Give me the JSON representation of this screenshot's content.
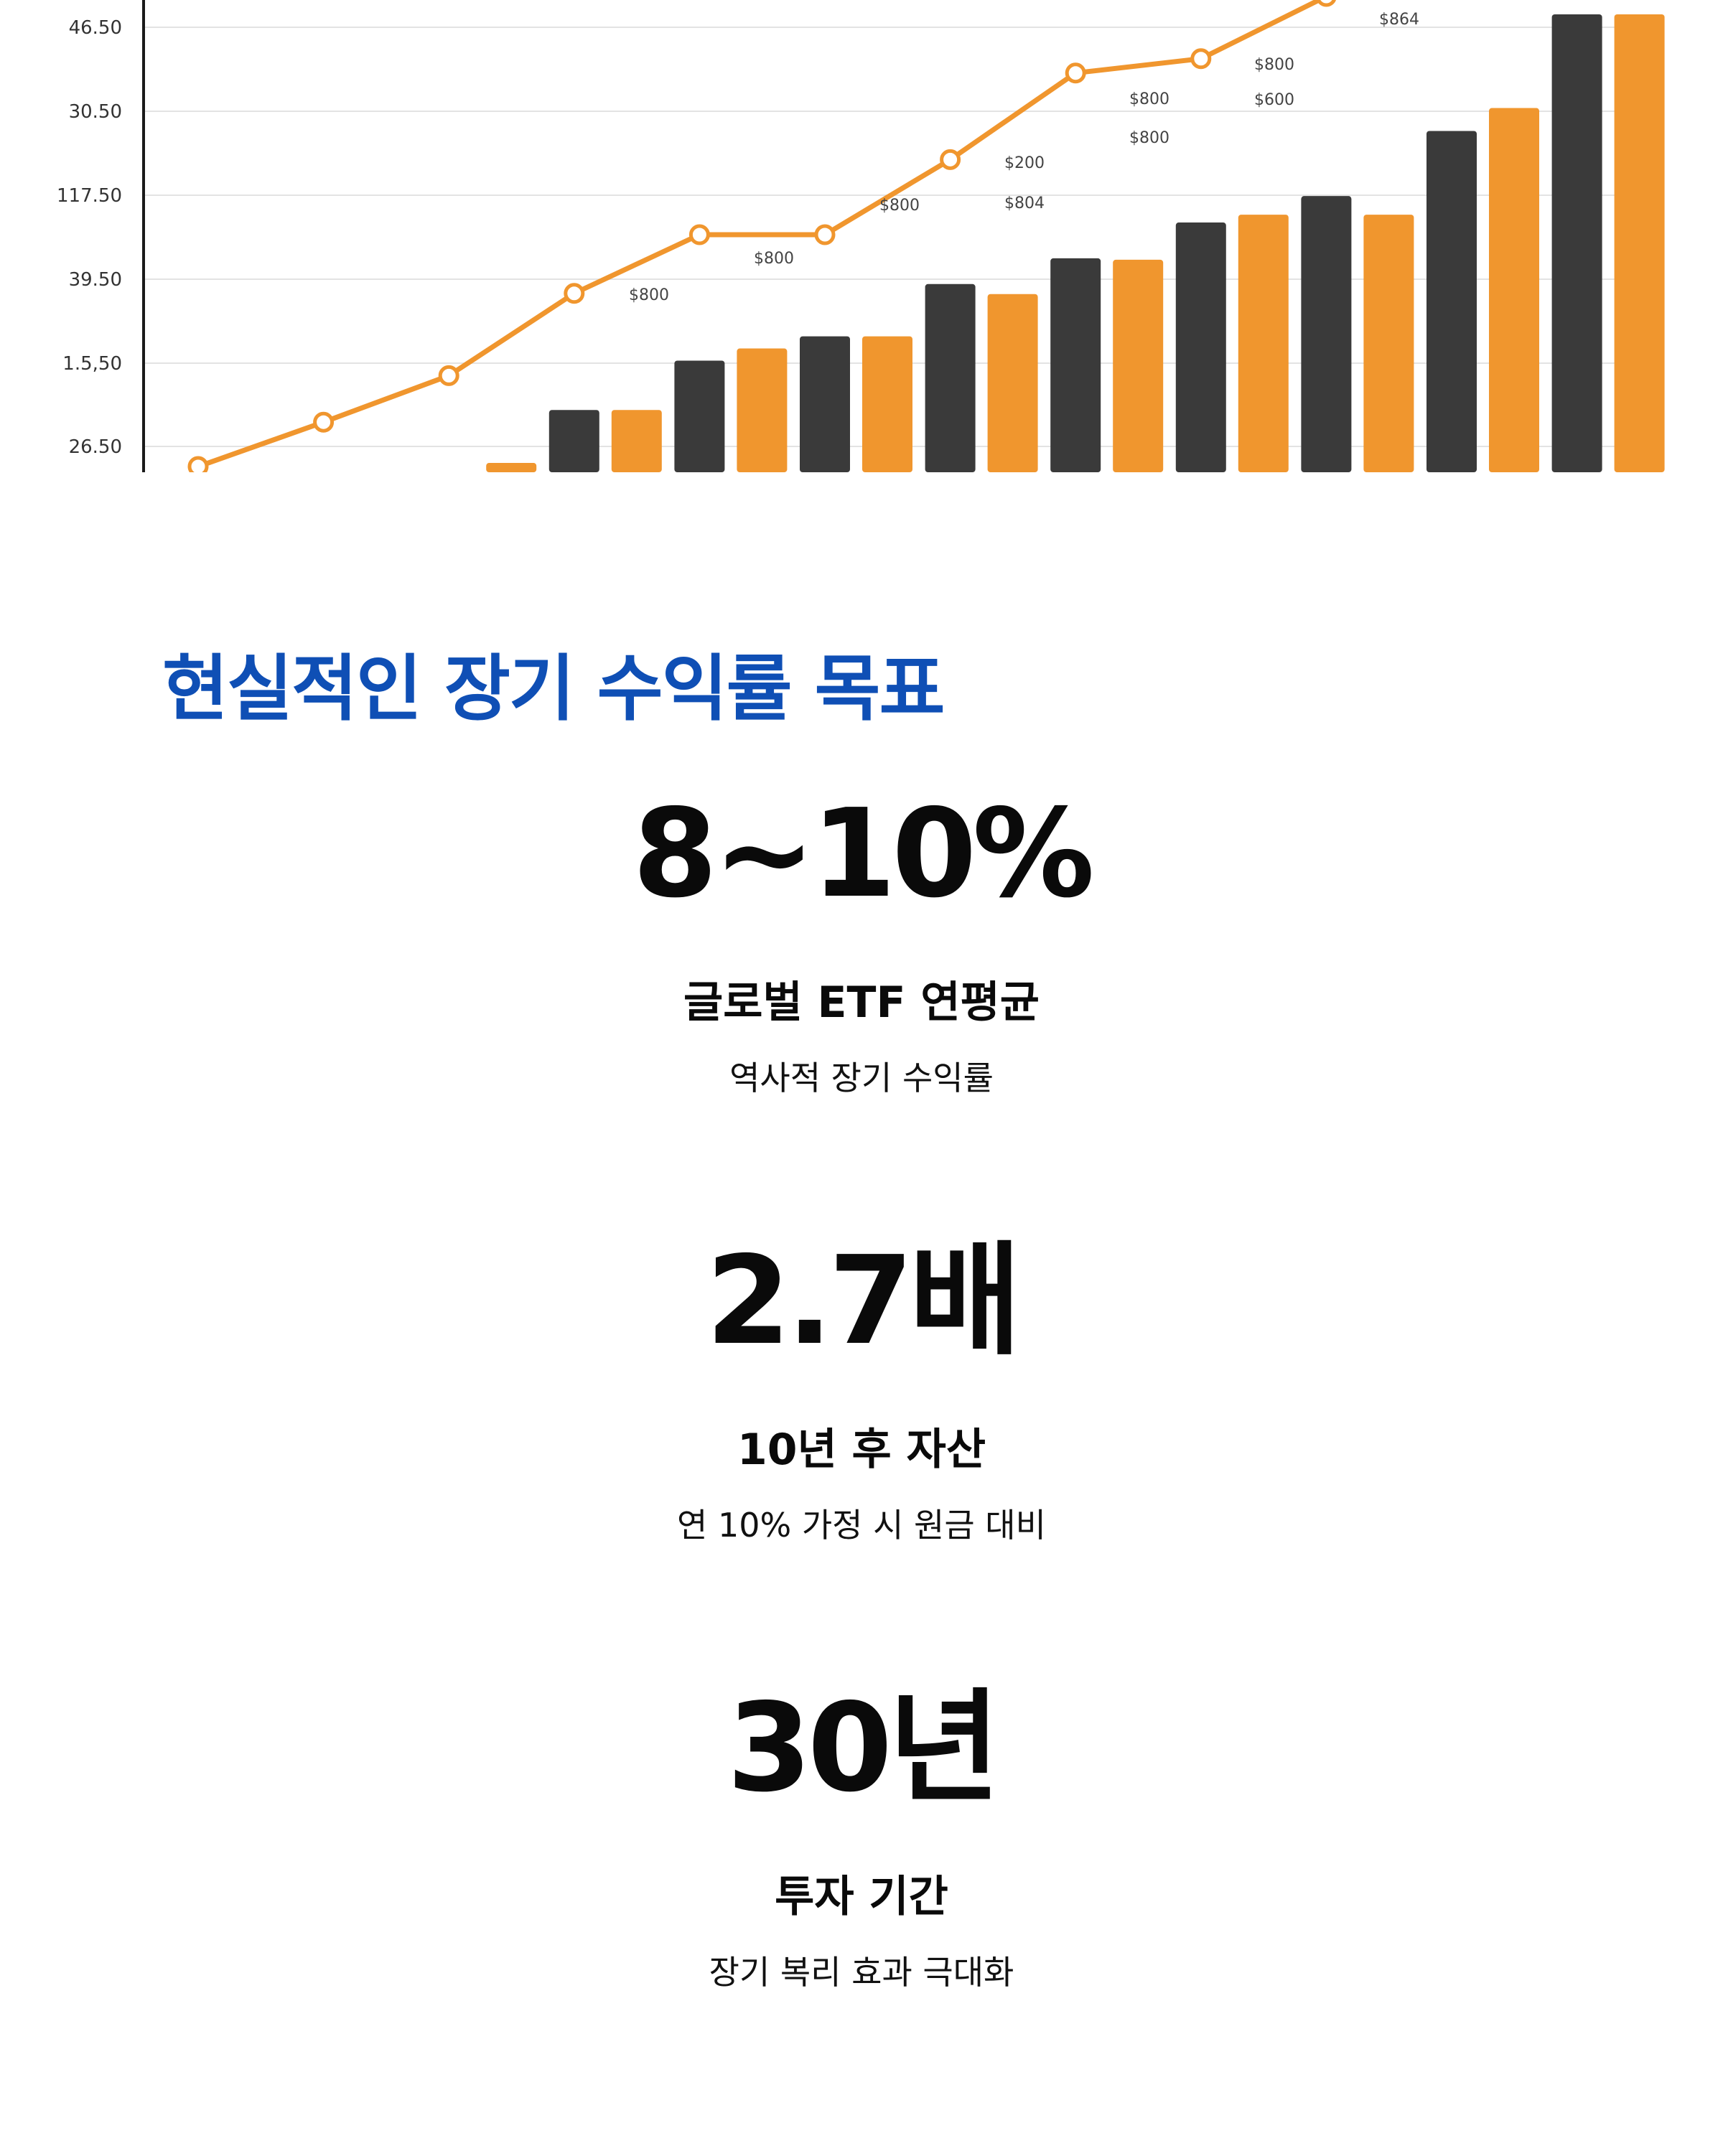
{
  "chart_data": {
    "type": "bar",
    "ytick_labels": [
      "46.50",
      "30.50",
      "117.50",
      "39.50",
      "1.5,50",
      "26.50"
    ],
    "series": [
      {
        "color": "#3a3a3a",
        "values": [
          null,
          null,
          null,
          87,
          156,
          190,
          263,
          299,
          349,
          386,
          477,
          640
        ]
      },
      {
        "color": "#f0962e",
        "values": [
          null,
          null,
          13,
          87,
          173,
          190,
          249,
          297,
          360,
          360,
          509,
          640
        ]
      }
    ],
    "line": {
      "color": "#f0962e",
      "values": [
        8,
        70,
        135,
        250,
        332,
        332,
        437,
        558,
        578,
        665
      ]
    },
    "bar_labels": [
      "$800",
      "$800",
      "$800",
      "$200",
      "$804",
      "$800",
      "$800",
      "$800",
      "$600",
      "$864"
    ]
  },
  "title": "현실적인 장기 수익률 목표",
  "stats": [
    {
      "value": "8~10%",
      "label": "글로벌 ETF 연평균",
      "desc": "역사적 장기 수익률"
    },
    {
      "value": "2.7배",
      "label": "10년 후 자산",
      "desc": "연 10% 가정 시 원금 대비"
    },
    {
      "value": "30년",
      "label": "투자 기간",
      "desc": "장기 복리 효과 극대화"
    }
  ],
  "colors": {
    "title": "#0f4fb5",
    "bar_dark": "#3a3a3a",
    "bar_orange": "#f0962e",
    "gridline": "#e3e3e3",
    "axis": "#1a1a1a"
  }
}
